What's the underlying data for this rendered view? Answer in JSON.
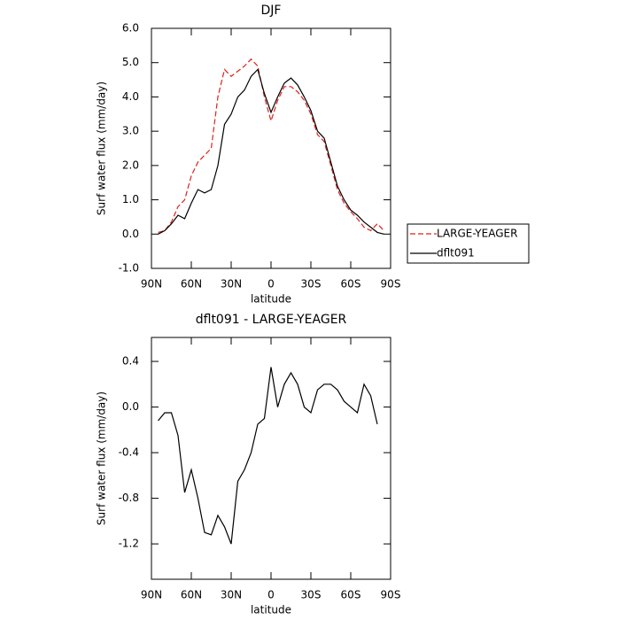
{
  "chart_data": [
    {
      "type": "line",
      "title": "DJF",
      "xlabel": "latitude",
      "ylabel": "Surf water flux (mm/day)",
      "x": [
        85,
        80,
        75,
        70,
        65,
        60,
        55,
        50,
        45,
        40,
        35,
        30,
        25,
        20,
        15,
        10,
        5,
        0,
        -5,
        -10,
        -15,
        -20,
        -25,
        -30,
        -35,
        -40,
        -45,
        -50,
        -55,
        -60,
        -65,
        -70,
        -75,
        -80,
        -85
      ],
      "series": [
        {
          "name": "LARGE-YEAGER",
          "color": "#e0201b",
          "style": "dashed",
          "values": [
            0.05,
            0.1,
            0.35,
            0.8,
            1.0,
            1.7,
            2.1,
            2.3,
            2.5,
            4.0,
            4.8,
            4.6,
            4.75,
            4.9,
            5.1,
            4.9,
            4.0,
            3.3,
            3.9,
            4.3,
            4.3,
            4.15,
            3.9,
            3.5,
            2.9,
            2.7,
            2.0,
            1.3,
            0.9,
            0.65,
            0.45,
            0.2,
            0.1,
            0.3,
            0.1
          ]
        },
        {
          "name": "dflt091",
          "color": "#000000",
          "style": "solid",
          "values": [
            0.0,
            0.1,
            0.3,
            0.55,
            0.45,
            0.9,
            1.3,
            1.2,
            1.3,
            2.0,
            3.2,
            3.5,
            4.0,
            4.2,
            4.6,
            4.8,
            4.1,
            3.55,
            4.0,
            4.4,
            4.55,
            4.35,
            4.0,
            3.6,
            3.0,
            2.8,
            2.1,
            1.4,
            1.0,
            0.7,
            0.55,
            0.35,
            0.2,
            0.05,
            0.0
          ]
        }
      ],
      "xlim": [
        90,
        -90
      ],
      "xticks": [
        {
          "value": 90,
          "label": "90N"
        },
        {
          "value": 60,
          "label": "60N"
        },
        {
          "value": 30,
          "label": "30N"
        },
        0,
        {
          "value": -30,
          "label": "30S"
        },
        {
          "value": -60,
          "label": "60S"
        },
        {
          "value": -90,
          "label": "90S"
        }
      ],
      "ylim": [
        -1,
        6
      ],
      "yticks": [
        {
          "value": -1,
          "label": "-1.0"
        },
        {
          "value": 0,
          "label": "0.0"
        },
        {
          "value": 1,
          "label": "1.0"
        },
        {
          "value": 2,
          "label": "2.0"
        },
        {
          "value": 3,
          "label": "3.0"
        },
        {
          "value": 4,
          "label": "4.0"
        },
        {
          "value": 5,
          "label": "5.0"
        },
        {
          "value": 6,
          "label": "6.0"
        }
      ],
      "legend": "right"
    },
    {
      "type": "line",
      "title": "dflt091 - LARGE-YEAGER",
      "xlabel": "latitude",
      "ylabel": "Surf water flux (mm/day)",
      "x": [
        85,
        80,
        75,
        70,
        65,
        60,
        55,
        50,
        45,
        40,
        35,
        30,
        25,
        20,
        15,
        10,
        5,
        0,
        -5,
        -10,
        -15,
        -20,
        -25,
        -30,
        -35,
        -40,
        -45,
        -50,
        -55,
        -60,
        -65,
        -70,
        -75,
        -80
      ],
      "series": [
        {
          "name": "dflt091 - LARGE-YEAGER",
          "color": "#000000",
          "style": "solid",
          "values": [
            -0.12,
            -0.05,
            -0.05,
            -0.25,
            -0.75,
            -0.55,
            -0.8,
            -1.1,
            -1.12,
            -0.95,
            -1.05,
            -1.2,
            -0.65,
            -0.55,
            -0.4,
            -0.15,
            -0.1,
            0.35,
            0.0,
            0.2,
            0.3,
            0.2,
            0.0,
            -0.05,
            0.15,
            0.2,
            0.2,
            0.15,
            0.05,
            0.0,
            -0.05,
            0.2,
            0.1,
            -0.15
          ]
        }
      ],
      "xlim": [
        90,
        -90
      ],
      "xticks": [
        {
          "value": 90,
          "label": "90N"
        },
        {
          "value": 60,
          "label": "60N"
        },
        {
          "value": 30,
          "label": "30N"
        },
        0,
        {
          "value": -30,
          "label": "30S"
        },
        {
          "value": -60,
          "label": "60S"
        },
        {
          "value": -90,
          "label": "90S"
        }
      ],
      "ylim": [
        -1.51,
        0.61
      ],
      "yticks": [
        {
          "value": -1.2,
          "label": "-1.2"
        },
        {
          "value": -0.8,
          "label": "-0.8"
        },
        {
          "value": -0.4,
          "label": "-0.4"
        },
        {
          "value": 0,
          "label": "0.0"
        },
        0.4
      ]
    }
  ]
}
